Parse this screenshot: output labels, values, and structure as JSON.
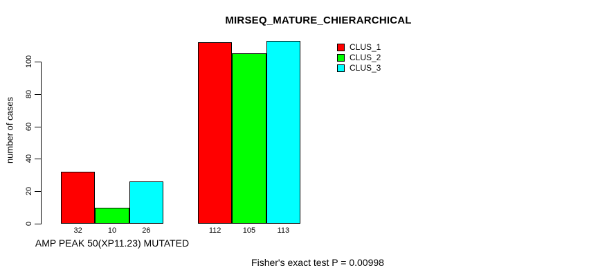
{
  "chart_data": {
    "type": "bar",
    "grouped": true,
    "title": "MIRSEQ_MATURE_CHIERARCHICAL",
    "ylabel": "number of cases",
    "xlabel": "AMP PEAK 50(XP11.23) MUTATED",
    "categories": [
      "AMP PEAK 50(XP11.23) MUTATED",
      ""
    ],
    "series": [
      {
        "name": "CLUS_1",
        "color": "#FF0000",
        "values": [
          32,
          112
        ]
      },
      {
        "name": "CLUS_2",
        "color": "#00FF00",
        "values": [
          10,
          105
        ]
      },
      {
        "name": "CLUS_3",
        "color": "#00FFFF",
        "values": [
          26,
          113
        ]
      }
    ],
    "yticks": [
      0,
      20,
      40,
      60,
      80,
      100
    ],
    "ylim": [
      0,
      113
    ],
    "grid": false,
    "legend": {
      "position": "top-right",
      "entries": [
        "CLUS_1",
        "CLUS_2",
        "CLUS_3"
      ]
    },
    "annotation": "Fisher's exact test P = 0.00998",
    "background_color": "#FFFFFF",
    "axis_color": "#000000"
  }
}
